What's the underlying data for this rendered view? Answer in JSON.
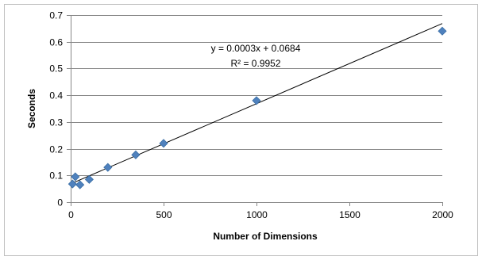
{
  "chart_data": {
    "type": "scatter",
    "title": "",
    "xlabel": "Number of Dimensions",
    "ylabel": "Seconds",
    "xlim": [
      0,
      2000
    ],
    "ylim": [
      0,
      0.7
    ],
    "x_ticks": [
      "0",
      "500",
      "1000",
      "1500",
      "2000"
    ],
    "y_ticks": [
      "0",
      "0.1",
      "0.2",
      "0.3",
      "0.4",
      "0.5",
      "0.6",
      "0.7"
    ],
    "grid": "horizontal",
    "legend": "none",
    "marker": "diamond",
    "marker_color": "#4f81bd",
    "trendline": {
      "type": "linear",
      "slope": 0.0003,
      "intercept": 0.0684,
      "equation": "y = 0.0003x + 0.0684",
      "r_squared": "R² = 0.9952",
      "color": "#000000"
    },
    "series": [
      {
        "points": [
          {
            "x": 10,
            "y": 0.068
          },
          {
            "x": 25,
            "y": 0.095
          },
          {
            "x": 50,
            "y": 0.065
          },
          {
            "x": 100,
            "y": 0.085
          },
          {
            "x": 200,
            "y": 0.13
          },
          {
            "x": 350,
            "y": 0.177
          },
          {
            "x": 500,
            "y": 0.22
          },
          {
            "x": 1000,
            "y": 0.38
          },
          {
            "x": 2000,
            "y": 0.64
          }
        ]
      }
    ]
  }
}
